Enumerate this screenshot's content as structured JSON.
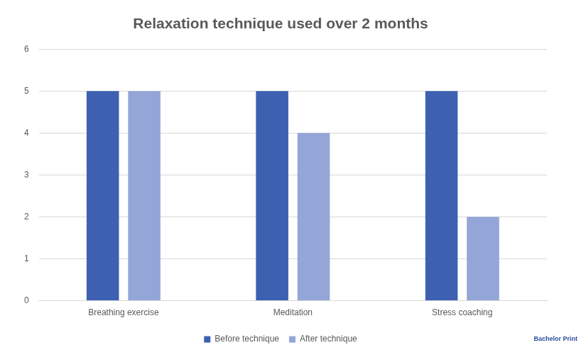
{
  "chart_data": {
    "type": "bar",
    "title": "Relaxation technique used over 2 months",
    "categories": [
      "Breathing exercise",
      "Meditation",
      "Stress coaching"
    ],
    "series": [
      {
        "name": "Before technique",
        "color": "#3d60b1",
        "values": [
          5,
          5,
          5
        ]
      },
      {
        "name": "After technique",
        "color": "#94a6d7",
        "values": [
          5,
          4,
          2
        ]
      }
    ],
    "ylim": [
      0,
      6
    ],
    "yticks": [
      0,
      1,
      2,
      3,
      4,
      5,
      6
    ],
    "grid": true,
    "legend": "bottom",
    "annotations": [
      "Bachelor Print"
    ]
  }
}
